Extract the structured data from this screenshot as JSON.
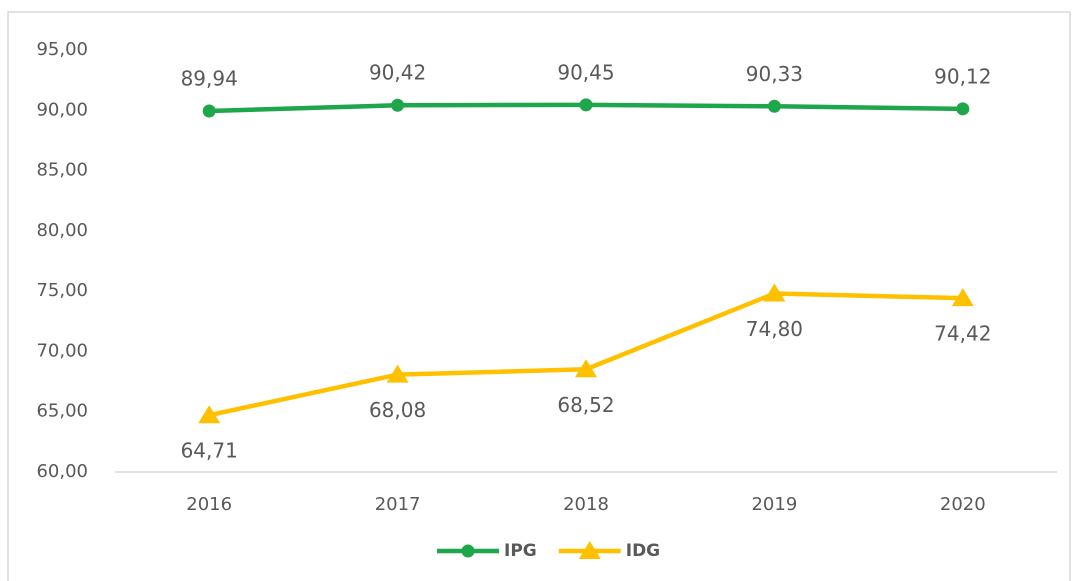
{
  "chart_data": {
    "type": "line",
    "categories": [
      "2016",
      "2017",
      "2018",
      "2019",
      "2020"
    ],
    "series": [
      {
        "name": "IPG",
        "color": "#1ea64b",
        "marker": "circle",
        "values": [
          89.94,
          90.42,
          90.45,
          90.33,
          90.12
        ],
        "value_labels": [
          "89,94",
          "90,42",
          "90,45",
          "90,33",
          "90,12"
        ]
      },
      {
        "name": "IDG",
        "color": "#ffc000",
        "marker": "triangle",
        "values": [
          64.71,
          68.08,
          68.52,
          74.8,
          74.42
        ],
        "value_labels": [
          "64,71",
          "68,08",
          "68,52",
          "74,80",
          "74,42"
        ]
      }
    ],
    "ylim": [
      60,
      95
    ],
    "yticks": [
      {
        "value": 60,
        "label": "60,00"
      },
      {
        "value": 65,
        "label": "65,00"
      },
      {
        "value": 70,
        "label": "70,00"
      },
      {
        "value": 75,
        "label": "75,00"
      },
      {
        "value": 80,
        "label": "80,00"
      },
      {
        "value": 85,
        "label": "85,00"
      },
      {
        "value": 90,
        "label": "90,00"
      },
      {
        "value": 95,
        "label": "95,00"
      }
    ],
    "grid": false,
    "legend": "bottom"
  }
}
